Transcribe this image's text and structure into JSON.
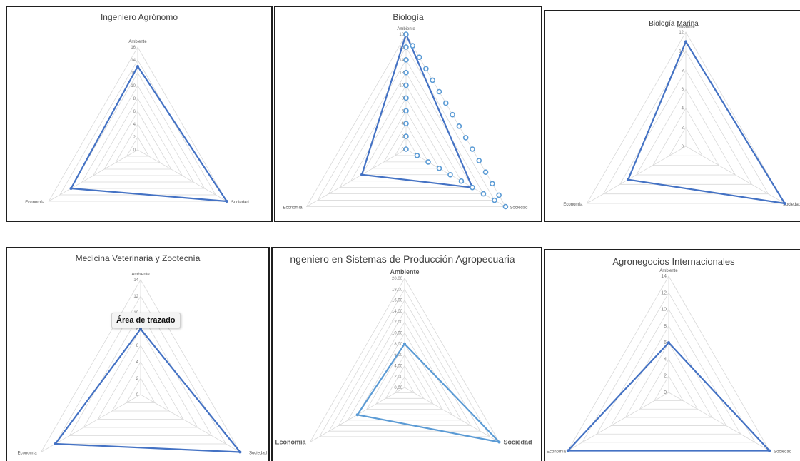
{
  "chart_data": [
    {
      "type": "radar",
      "title": "Ingeniero Agrónomo",
      "axes": [
        "Ambiente",
        "Sociedad",
        "Economía"
      ],
      "ticks": [
        "0",
        "2",
        "4",
        "6",
        "8",
        "10",
        "12",
        "14",
        "16"
      ],
      "max": 16,
      "series": [
        {
          "values": [
            13,
            16,
            12
          ]
        }
      ],
      "color": "#4472c4"
    },
    {
      "type": "radar",
      "title": "Biología",
      "axes": [
        "Ambiente",
        "Sociedad",
        "Economía"
      ],
      "ticks": [
        "0",
        "2",
        "4",
        "6",
        "8",
        "10",
        "12",
        "14",
        "16",
        "18"
      ],
      "max": 18,
      "series": [
        {
          "values": [
            18,
            12,
            8
          ]
        },
        {
          "values": [
            18,
            18,
            0
          ]
        }
      ],
      "color": "#4472c4",
      "secondary_color": "#5b9bd5"
    },
    {
      "type": "radar",
      "title": "Biología Marina",
      "axes": [
        "Ambiente",
        "Sociedad",
        "Economía"
      ],
      "ticks": [
        "0",
        "2",
        "4",
        "6",
        "8",
        "10",
        "12"
      ],
      "max": 12,
      "series": [
        {
          "values": [
            11,
            12,
            7
          ]
        }
      ],
      "color": "#4472c4"
    },
    {
      "type": "radar",
      "title": "Medicina Veterinaria y Zootecnía",
      "axes": [
        "Ambiente",
        "Sociedad",
        "Economía"
      ],
      "ticks": [
        "0",
        "2",
        "4",
        "6",
        "8",
        "10",
        "12",
        "14"
      ],
      "max": 14,
      "series": [
        {
          "values": [
            8,
            14,
            12
          ]
        }
      ],
      "color": "#4472c4"
    },
    {
      "type": "radar",
      "title": "ngeniero en Sistemas de Producción Agropecuaria",
      "axes": [
        "Ambiente",
        "Sociedad",
        "Economía"
      ],
      "ticks": [
        "0,00",
        "2,00",
        "4,00",
        "6,00",
        "8,00",
        "10,00",
        "12,00",
        "14,00",
        "16,00",
        "18,00",
        "20,00"
      ],
      "max": 20,
      "series": [
        {
          "values": [
            8,
            20,
            10
          ]
        }
      ],
      "color": "#5b9bd5"
    },
    {
      "type": "radar",
      "title": "Agronegocios Internacionales",
      "axes": [
        "Ambiente",
        "Sociedad",
        "Economía"
      ],
      "ticks": [
        "0",
        "2",
        "4",
        "6",
        "8",
        "10",
        "12",
        "14"
      ],
      "max": 14,
      "series": [
        {
          "values": [
            6,
            14,
            14
          ]
        }
      ],
      "color": "#4472c4"
    }
  ],
  "tooltip": {
    "text": "Área de trazado"
  }
}
